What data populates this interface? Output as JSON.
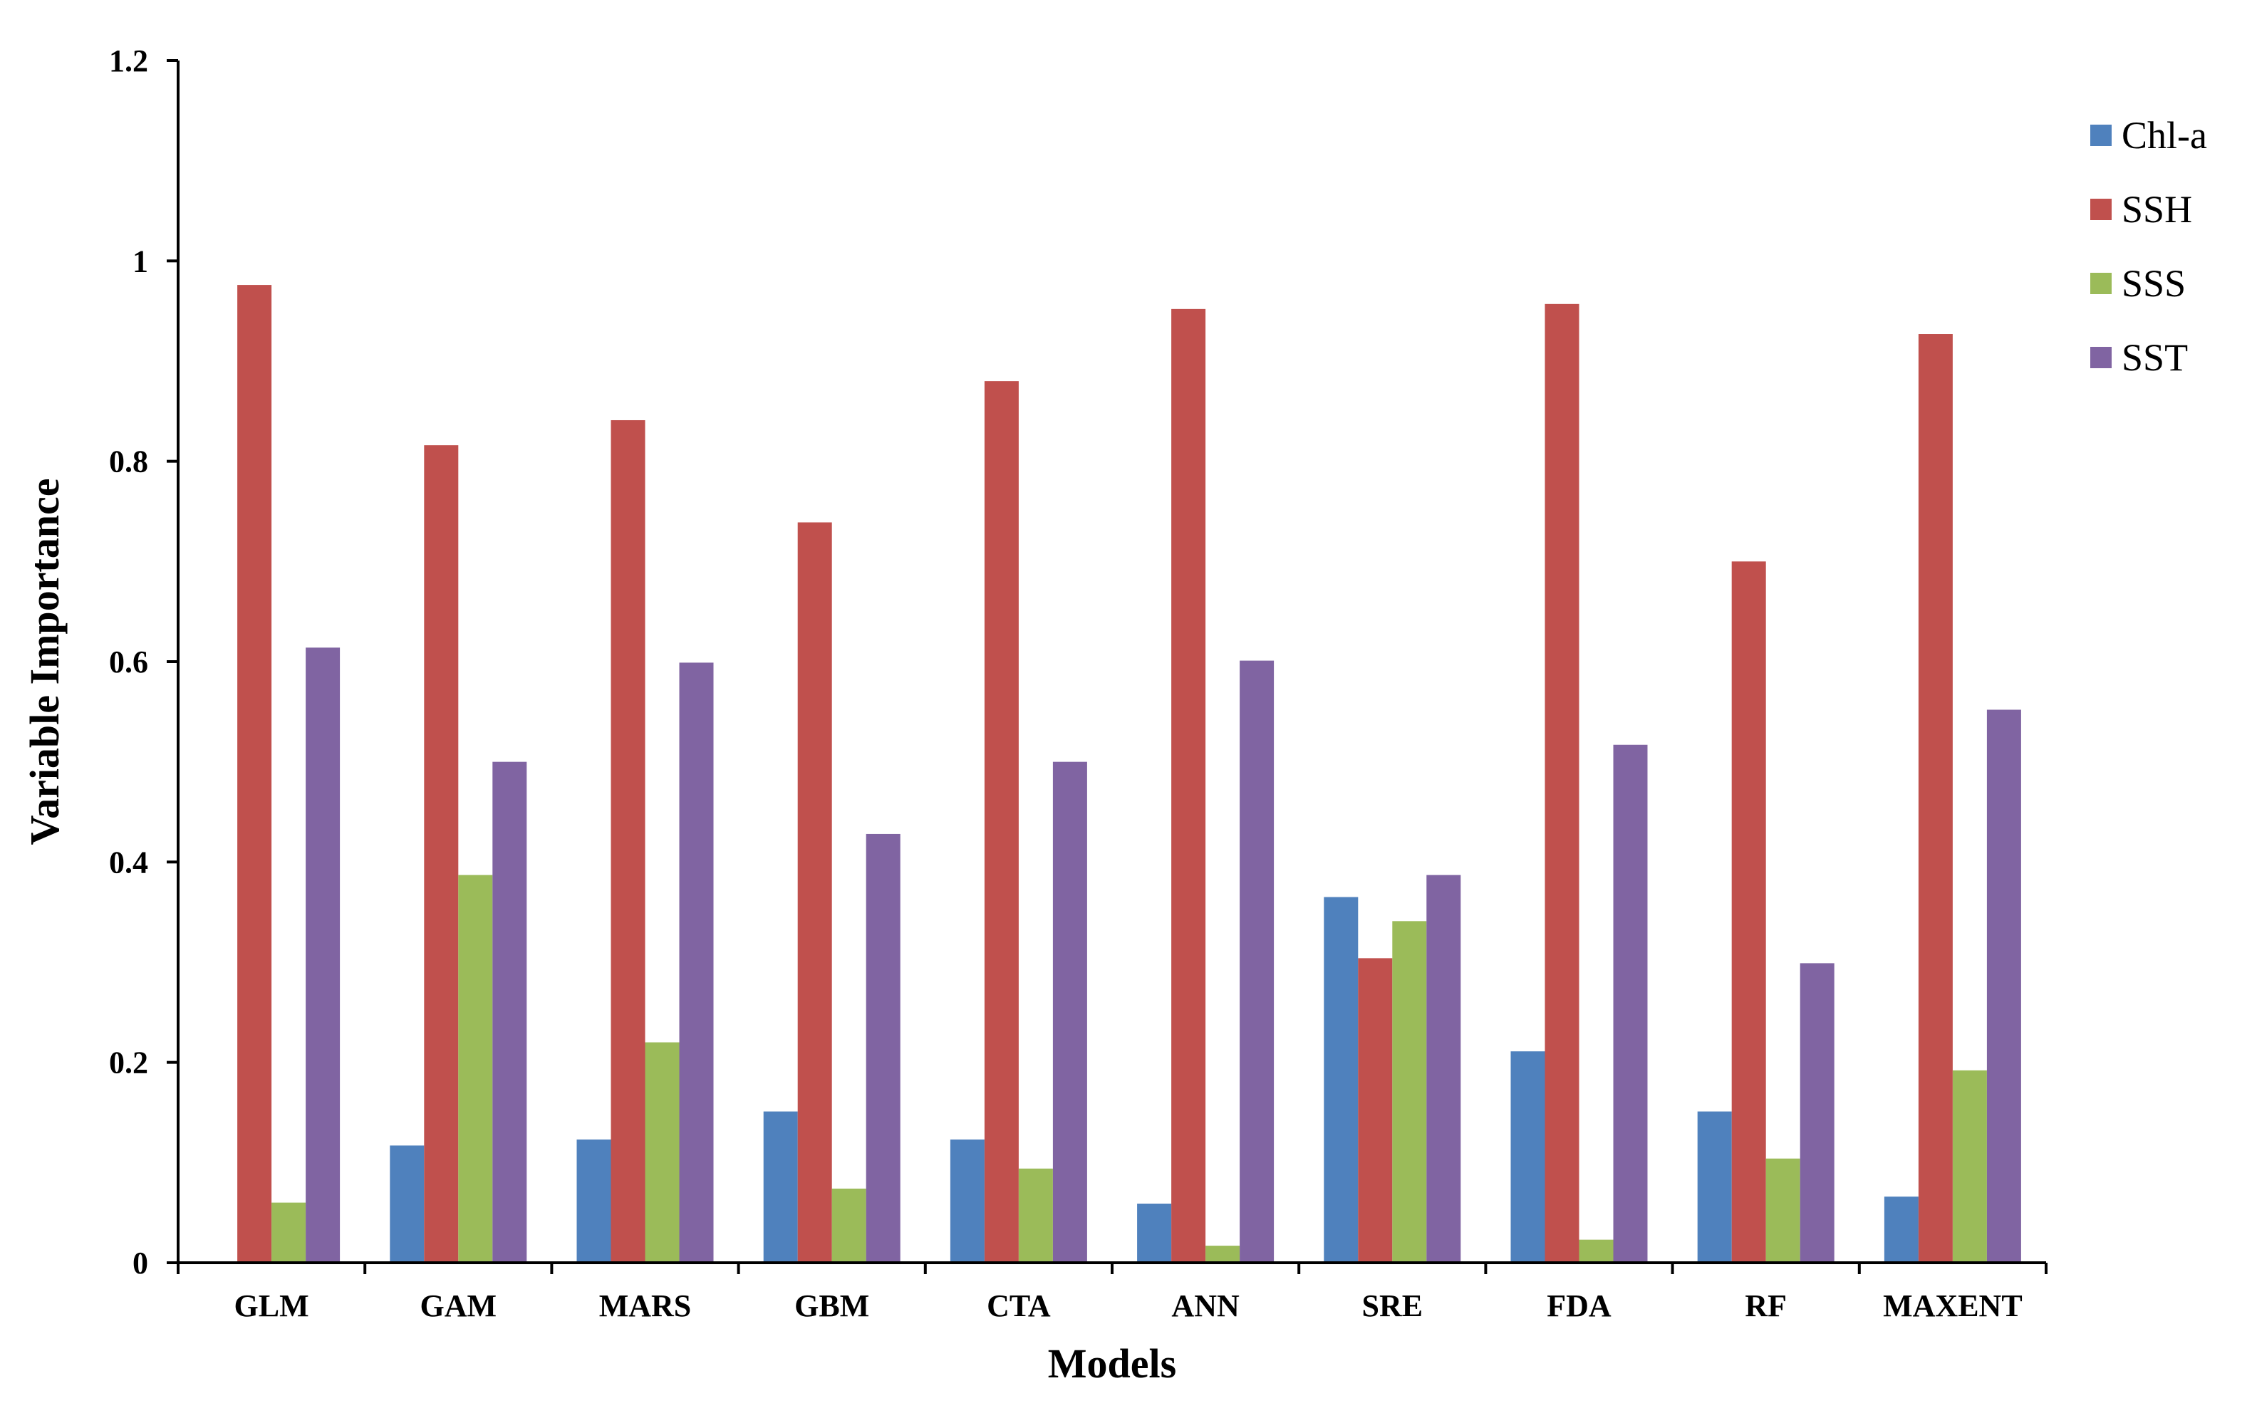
{
  "chart_data": {
    "type": "bar",
    "title": "",
    "xlabel": "Models",
    "ylabel": "Variable Importance",
    "ylim": [
      0,
      1.2
    ],
    "yticks": [
      0,
      0.2,
      0.4,
      0.6,
      0.8,
      1,
      1.2
    ],
    "ytick_labels": [
      "0",
      "0.2",
      "0.4",
      "0.6",
      "0.8",
      "1",
      "1.2"
    ],
    "grid": false,
    "legend_position": "top-right",
    "categories": [
      "GLM",
      "GAM",
      "MARS",
      "GBM",
      "CTA",
      "ANN",
      "SRE",
      "FDA",
      "RF",
      "MAXENT"
    ],
    "series": [
      {
        "name": "Chl-a",
        "color": "#4F81BD",
        "values": [
          0,
          0.117,
          0.123,
          0.151,
          0.123,
          0.059,
          0.365,
          0.211,
          0.151,
          0.066
        ]
      },
      {
        "name": "SSH",
        "color": "#C0504D",
        "values": [
          0.976,
          0.816,
          0.841,
          0.739,
          0.88,
          0.952,
          0.304,
          0.957,
          0.7,
          0.927
        ]
      },
      {
        "name": "SSS",
        "color": "#9BBB59",
        "values": [
          0.06,
          0.387,
          0.22,
          0.074,
          0.094,
          0.017,
          0.341,
          0.023,
          0.104,
          0.192
        ]
      },
      {
        "name": "SST",
        "color": "#8064A2",
        "values": [
          0.614,
          0.5,
          0.599,
          0.428,
          0.5,
          0.601,
          0.387,
          0.517,
          0.299,
          0.552
        ]
      }
    ]
  }
}
